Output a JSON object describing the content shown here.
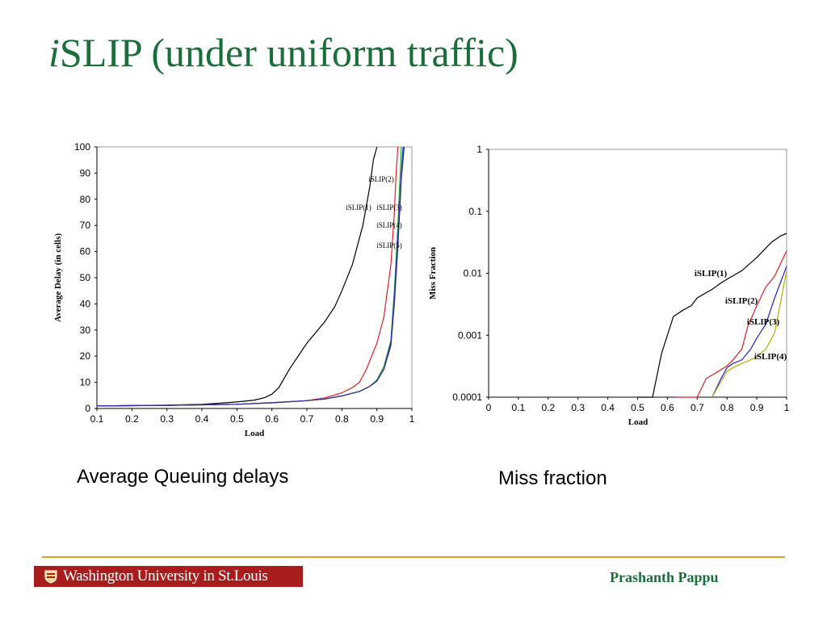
{
  "slide": {
    "title_prefix": "i",
    "title_rest": "SLIP (under uniform traffic)",
    "caption_left": "Average Queuing delays",
    "caption_right": "Miss fraction",
    "footer_logo_text": "Washington University in St.Louis",
    "author": "Prashanth Pappu"
  },
  "colors": {
    "title": "#1a6e3a",
    "footer_line": "#e0a020",
    "logo_bg": "#a81c1c",
    "islip1": "#000000",
    "islip2": "#e02020",
    "islip3": "#20a020",
    "islip4": "#2020d0",
    "islip5": "#b0b000"
  },
  "chart_data": [
    {
      "type": "line",
      "title": "",
      "xlabel": "Load",
      "ylabel": "Average Delay (in cells)",
      "xlim": [
        0.1,
        1
      ],
      "ylim": [
        0,
        100
      ],
      "x_ticks": [
        "0.1",
        "0.2",
        "0.3",
        "0.4",
        "0.5",
        "0.6",
        "0.7",
        "0.8",
        "0.9",
        "1"
      ],
      "y_ticks": [
        "0",
        "10",
        "20",
        "30",
        "40",
        "50",
        "60",
        "70",
        "80",
        "90",
        "100"
      ],
      "grid": false,
      "annotations": [
        "iSLIP(1)",
        "iSLIP(2)",
        "iSLIP(3)",
        "iSLIP(4)",
        "iSLIP(5)"
      ],
      "series": [
        {
          "name": "iSLIP(1)",
          "color": "#000000",
          "x": [
            0.1,
            0.2,
            0.3,
            0.4,
            0.45,
            0.5,
            0.55,
            0.58,
            0.6,
            0.62,
            0.65,
            0.7,
            0.75,
            0.78,
            0.8,
            0.83,
            0.86,
            0.88,
            0.89,
            0.9
          ],
          "y": [
            1,
            1.1,
            1.3,
            1.6,
            2,
            2.5,
            3.2,
            4.2,
            5.5,
            8,
            15,
            25,
            33,
            39,
            45,
            55,
            70,
            85,
            95,
            100
          ]
        },
        {
          "name": "iSLIP(2)",
          "color": "#e02020",
          "x": [
            0.1,
            0.3,
            0.5,
            0.6,
            0.7,
            0.75,
            0.8,
            0.83,
            0.85,
            0.87,
            0.9,
            0.92,
            0.94,
            0.95,
            0.955,
            0.96
          ],
          "y": [
            1,
            1.2,
            1.6,
            2.2,
            3,
            4,
            6,
            8,
            10,
            15,
            25,
            35,
            55,
            75,
            90,
            100
          ]
        },
        {
          "name": "iSLIP(3)",
          "color": "#20a020",
          "x": [
            0.1,
            0.3,
            0.5,
            0.6,
            0.7,
            0.75,
            0.8,
            0.85,
            0.88,
            0.9,
            0.92,
            0.94,
            0.95,
            0.96,
            0.965,
            0.97
          ],
          "y": [
            1,
            1.2,
            1.6,
            2.2,
            3,
            3.6,
            4.8,
            6.5,
            8.5,
            11,
            16,
            26,
            45,
            70,
            85,
            100
          ]
        },
        {
          "name": "iSLIP(4)",
          "color": "#2020d0",
          "x": [
            0.1,
            0.3,
            0.5,
            0.6,
            0.7,
            0.75,
            0.8,
            0.85,
            0.88,
            0.9,
            0.92,
            0.94,
            0.95,
            0.96,
            0.97,
            0.975
          ],
          "y": [
            1,
            1.2,
            1.6,
            2.2,
            3,
            3.6,
            4.8,
            6.5,
            8.5,
            10.5,
            15,
            25,
            42,
            65,
            90,
            100
          ]
        },
        {
          "name": "iSLIP(5)",
          "color": "#3030a0",
          "x": [
            0.1,
            0.3,
            0.5,
            0.6,
            0.7,
            0.75,
            0.8,
            0.85,
            0.88,
            0.9,
            0.92,
            0.94,
            0.95,
            0.96,
            0.97,
            0.978
          ],
          "y": [
            1,
            1.2,
            1.6,
            2.2,
            3,
            3.6,
            4.8,
            6.5,
            8.5,
            10.5,
            15,
            24,
            40,
            62,
            88,
            100
          ]
        }
      ]
    },
    {
      "type": "line",
      "title": "",
      "xlabel": "Load",
      "ylabel": "Miss Fraction",
      "yscale": "log",
      "xlim": [
        0,
        1
      ],
      "ylim": [
        0.0001,
        1
      ],
      "x_ticks": [
        "0",
        "0.1",
        "0.2",
        "0.3",
        "0.4",
        "0.5",
        "0.6",
        "0.7",
        "0.8",
        "0.9",
        "1"
      ],
      "y_ticks": [
        "0.0001",
        "0.001",
        "0.01",
        "0.1",
        "1"
      ],
      "grid": false,
      "annotations": [
        "iSLIP(1)",
        "iSLIP(2)",
        "iSLIP(3)",
        "iSLIP(4)"
      ],
      "series": [
        {
          "name": "iSLIP(1)",
          "color": "#000000",
          "x": [
            0.5,
            0.55,
            0.58,
            0.62,
            0.65,
            0.68,
            0.7,
            0.75,
            0.78,
            0.8,
            0.85,
            0.9,
            0.95,
            0.98,
            1.0
          ],
          "y": [
            0.0001,
            0.0001,
            0.0005,
            0.002,
            0.0025,
            0.003,
            0.004,
            0.0055,
            0.007,
            0.008,
            0.011,
            0.018,
            0.032,
            0.04,
            0.044
          ]
        },
        {
          "name": "iSLIP(2)",
          "color": "#e02020",
          "x": [
            0.63,
            0.7,
            0.73,
            0.77,
            0.8,
            0.82,
            0.85,
            0.87,
            0.9,
            0.93,
            0.96,
            1.0
          ],
          "y": [
            0.0001,
            0.0001,
            0.0002,
            0.00026,
            0.00032,
            0.0004,
            0.0006,
            0.0014,
            0.003,
            0.006,
            0.009,
            0.023
          ]
        },
        {
          "name": "iSLIP(3)",
          "color": "#2020d0",
          "x": [
            0.75,
            0.78,
            0.8,
            0.82,
            0.85,
            0.88,
            0.9,
            0.93,
            0.96,
            1.0
          ],
          "y": [
            0.0001,
            0.0002,
            0.0003,
            0.00035,
            0.0004,
            0.0006,
            0.0009,
            0.0015,
            0.004,
            0.013
          ]
        },
        {
          "name": "iSLIP(4)",
          "color": "#b0b000",
          "x": [
            0.75,
            0.78,
            0.8,
            0.82,
            0.85,
            0.88,
            0.9,
            0.93,
            0.96,
            1.0
          ],
          "y": [
            0.0001,
            0.00018,
            0.00026,
            0.0003,
            0.00035,
            0.0004,
            0.00045,
            0.0006,
            0.0011,
            0.011
          ]
        }
      ]
    }
  ]
}
